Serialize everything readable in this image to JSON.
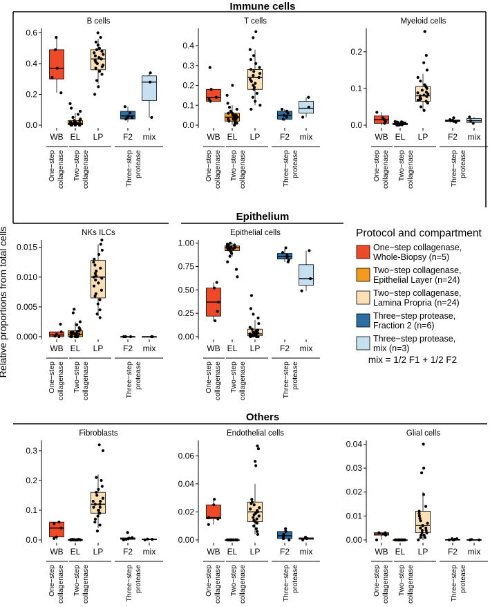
{
  "figure": {
    "y_axis_label": "Relative proportions from total cells",
    "legend_title": "Protocol and compartment",
    "legend_note": "mix = 1/2 F1 + 1/2 F2"
  },
  "sections": {
    "immune": "Immune cells",
    "epithelium": "Epithelium",
    "others": "Others"
  },
  "protocols": [
    {
      "key": "WB",
      "name": "One−step collagenase, Whole-Biopsy (n=5)",
      "line1": "One−step collagenase,",
      "line2": "Whole-Biopsy (n=5)",
      "color": "#ef4a28"
    },
    {
      "key": "EL",
      "name": "Two−step collagenase, Epithelial Layer (n=24)",
      "line1": "Two−step collagenase,",
      "line2": "Epithelial Layer (n=24)",
      "color": "#f39a1f"
    },
    {
      "key": "LP",
      "name": "Two−step collagenase, Lamina Propria (n=24)",
      "line1": "Two−step collagenase,",
      "line2": "Lamina Propria (n=24)",
      "color": "#fce0b5"
    },
    {
      "key": "F2",
      "name": "Three−step protease, Fraction 2 (n=6)",
      "line1": "Three−step protease,",
      "line2": "Fraction 2 (n=6)",
      "color": "#2b6ea3"
    },
    {
      "key": "mix",
      "name": "Three−step protease, mix (n=3)",
      "line1": "Three−step protease,",
      "line2": "mix (n=3)",
      "color": "#c4e0f1"
    }
  ],
  "x_groups": [
    {
      "line1": "One−step",
      "line2": "collagenase"
    },
    {
      "line1": "Two−step",
      "line2": "collagenase"
    },
    {
      "line1": "Three−step",
      "line2": "protease"
    }
  ],
  "chart_data": [
    {
      "type": "box",
      "title": "B cells",
      "categories": [
        "WB",
        "EL",
        "LP",
        "F2",
        "mix"
      ],
      "ylim": [
        0,
        0.62
      ],
      "yticks": [
        0.0,
        0.2,
        0.4,
        0.6
      ],
      "ytick_labels": [
        "0.0",
        "0.2",
        "0.4",
        "0.6"
      ],
      "boxes": [
        {
          "q1": 0.3,
          "median": 0.37,
          "q3": 0.49,
          "min": 0.21,
          "max": 0.57
        },
        {
          "q1": 0.002,
          "median": 0.01,
          "q3": 0.03,
          "min": 0.0,
          "max": 0.08
        },
        {
          "q1": 0.36,
          "median": 0.43,
          "q3": 0.49,
          "min": 0.27,
          "max": 0.56
        },
        {
          "q1": 0.04,
          "median": 0.06,
          "q3": 0.09,
          "min": 0.02,
          "max": 0.12
        },
        {
          "q1": 0.16,
          "median": 0.28,
          "q3": 0.32,
          "min": 0.05,
          "max": 0.34
        }
      ],
      "points": [
        [
          0.21,
          0.31,
          0.37,
          0.49,
          0.57
        ],
        [
          0.0,
          0.0,
          0.0,
          0.0,
          0.0,
          0.01,
          0.01,
          0.01,
          0.01,
          0.01,
          0.01,
          0.01,
          0.02,
          0.02,
          0.02,
          0.02,
          0.03,
          0.03,
          0.04,
          0.05,
          0.07,
          0.09,
          0.11,
          0.14
        ],
        [
          0.2,
          0.25,
          0.29,
          0.33,
          0.35,
          0.37,
          0.38,
          0.39,
          0.4,
          0.41,
          0.42,
          0.43,
          0.43,
          0.44,
          0.45,
          0.46,
          0.47,
          0.48,
          0.49,
          0.5,
          0.52,
          0.54,
          0.57,
          0.6
        ],
        [
          0.04,
          0.05,
          0.05,
          0.06,
          0.08,
          0.12
        ],
        [
          0.05,
          0.28,
          0.34
        ]
      ]
    },
    {
      "type": "box",
      "title": "T cells",
      "categories": [
        "WB",
        "EL",
        "LP",
        "F2",
        "mix"
      ],
      "ylim": [
        0,
        0.48
      ],
      "yticks": [
        0.0,
        0.1,
        0.2,
        0.3,
        0.4
      ],
      "ytick_labels": [
        "0.0",
        "0.1",
        "0.2",
        "0.3",
        "0.4"
      ],
      "boxes": [
        {
          "q1": 0.12,
          "median": 0.14,
          "q3": 0.18,
          "min": 0.12,
          "max": 0.18
        },
        {
          "q1": 0.02,
          "median": 0.04,
          "q3": 0.06,
          "min": 0.0,
          "max": 0.1
        },
        {
          "q1": 0.18,
          "median": 0.24,
          "q3": 0.28,
          "min": 0.1,
          "max": 0.38
        },
        {
          "q1": 0.03,
          "median": 0.05,
          "q3": 0.07,
          "min": 0.02,
          "max": 0.08
        },
        {
          "q1": 0.06,
          "median": 0.085,
          "q3": 0.12,
          "min": 0.04,
          "max": 0.14
        }
      ],
      "points": [
        [
          0.12,
          0.13,
          0.14,
          0.18,
          0.29
        ],
        [
          0.0,
          0.01,
          0.01,
          0.02,
          0.02,
          0.02,
          0.03,
          0.03,
          0.03,
          0.04,
          0.04,
          0.04,
          0.04,
          0.05,
          0.05,
          0.05,
          0.06,
          0.06,
          0.07,
          0.08,
          0.09,
          0.11,
          0.15,
          0.2
        ],
        [
          0.08,
          0.1,
          0.12,
          0.14,
          0.16,
          0.18,
          0.19,
          0.2,
          0.21,
          0.22,
          0.23,
          0.24,
          0.24,
          0.25,
          0.26,
          0.27,
          0.28,
          0.29,
          0.31,
          0.33,
          0.35,
          0.38,
          0.44,
          0.47
        ],
        [
          0.03,
          0.04,
          0.05,
          0.06,
          0.07,
          0.08
        ],
        [
          0.04,
          0.09,
          0.14
        ]
      ]
    },
    {
      "type": "box",
      "title": "Myeloid cells",
      "categories": [
        "WB",
        "EL",
        "LP",
        "F2",
        "mix"
      ],
      "ylim": [
        0,
        0.26
      ],
      "yticks": [
        0.0,
        0.1,
        0.2
      ],
      "ytick_labels": [
        "0.0",
        "0.1",
        "0.2"
      ],
      "boxes": [
        {
          "q1": 0.005,
          "median": 0.015,
          "q3": 0.025,
          "min": 0.0,
          "max": 0.035
        },
        {
          "q1": 0.001,
          "median": 0.003,
          "q3": 0.005,
          "min": 0.0,
          "max": 0.01
        },
        {
          "q1": 0.065,
          "median": 0.08,
          "q3": 0.105,
          "min": 0.04,
          "max": 0.14
        },
        {
          "q1": 0.01,
          "median": 0.012,
          "q3": 0.014,
          "min": 0.008,
          "max": 0.02
        },
        {
          "q1": 0.007,
          "median": 0.012,
          "q3": 0.018,
          "min": 0.005,
          "max": 0.022
        }
      ],
      "points": [
        [
          0.005,
          0.01,
          0.015,
          0.02,
          0.035
        ],
        [
          0.0,
          0.0,
          0.001,
          0.001,
          0.002,
          0.002,
          0.003,
          0.003,
          0.003,
          0.004,
          0.004,
          0.004,
          0.005,
          0.005,
          0.005,
          0.006,
          0.006,
          0.006,
          0.007,
          0.007,
          0.008,
          0.008,
          0.009,
          0.01
        ],
        [
          0.04,
          0.05,
          0.06,
          0.065,
          0.068,
          0.07,
          0.072,
          0.075,
          0.078,
          0.08,
          0.082,
          0.085,
          0.088,
          0.09,
          0.095,
          0.1,
          0.105,
          0.11,
          0.12,
          0.13,
          0.15,
          0.17,
          0.19,
          0.255
        ],
        [
          0.008,
          0.01,
          0.012,
          0.013,
          0.015,
          0.02
        ],
        [
          0.005,
          0.012,
          0.022
        ]
      ]
    },
    {
      "type": "box",
      "title": "NKs ILCs",
      "categories": [
        "WB",
        "EL",
        "LP",
        "F2",
        "mix"
      ],
      "ylim": [
        0,
        0.016
      ],
      "yticks": [
        0.0,
        0.005,
        0.01,
        0.015
      ],
      "ytick_labels": [
        "0.000",
        "0.005",
        "0.010",
        "0.015"
      ],
      "boxes": [
        {
          "q1": 0.0,
          "median": 0.0003,
          "q3": 0.0008,
          "min": 0.0,
          "max": 0.0008
        },
        {
          "q1": 0.0,
          "median": 0.0004,
          "q3": 0.001,
          "min": 0.0,
          "max": 0.0025
        },
        {
          "q1": 0.0065,
          "median": 0.01,
          "q3": 0.0128,
          "min": 0.0035,
          "max": 0.0155
        },
        {
          "q1": 0.0,
          "median": 0.0,
          "q3": 0.0,
          "min": 0.0,
          "max": 0.0
        },
        {
          "q1": 0.0,
          "median": 0.0,
          "q3": 0.0,
          "min": 0.0,
          "max": 0.0
        }
      ],
      "points": [
        [
          0.0,
          0.0001,
          0.0004,
          0.0008,
          0.0021
        ],
        [
          0.0,
          0.0,
          0.0,
          0.0,
          0.0,
          0.0,
          0.0,
          0.0001,
          0.0002,
          0.0003,
          0.0004,
          0.0004,
          0.0005,
          0.0006,
          0.0007,
          0.0008,
          0.0009,
          0.001,
          0.0012,
          0.0015,
          0.002,
          0.0025,
          0.004,
          0.0046
        ],
        [
          0.0032,
          0.0038,
          0.0045,
          0.0055,
          0.0062,
          0.0068,
          0.0072,
          0.0078,
          0.0085,
          0.009,
          0.0095,
          0.0098,
          0.01,
          0.0102,
          0.0106,
          0.011,
          0.0115,
          0.012,
          0.0125,
          0.013,
          0.0138,
          0.0145,
          0.0155,
          0.0162
        ],
        [
          0.0,
          0.0,
          0.0,
          0.0,
          0.0,
          0.0
        ],
        [
          0.0,
          0.0,
          0.0
        ]
      ]
    },
    {
      "type": "box",
      "title": "Epithelial cells",
      "categories": [
        "WB",
        "EL",
        "LP",
        "F2",
        "mix"
      ],
      "ylim": [
        0,
        1.02
      ],
      "yticks": [
        0.0,
        0.25,
        0.5,
        0.75,
        1.0
      ],
      "ytick_labels": [
        "0.00",
        "0.25",
        "0.50",
        "0.75",
        "1.00"
      ],
      "boxes": [
        {
          "q1": 0.22,
          "median": 0.37,
          "q3": 0.52,
          "min": 0.17,
          "max": 0.58
        },
        {
          "q1": 0.92,
          "median": 0.95,
          "q3": 0.97,
          "min": 0.86,
          "max": 1.0
        },
        {
          "q1": 0.01,
          "median": 0.03,
          "q3": 0.08,
          "min": 0.0,
          "max": 0.18
        },
        {
          "q1": 0.83,
          "median": 0.86,
          "q3": 0.89,
          "min": 0.8,
          "max": 0.94
        },
        {
          "q1": 0.55,
          "median": 0.62,
          "q3": 0.77,
          "min": 0.49,
          "max": 0.92
        }
      ],
      "points": [
        [
          0.17,
          0.27,
          0.37,
          0.52,
          0.58
        ],
        [
          0.64,
          0.72,
          0.8,
          0.86,
          0.89,
          0.91,
          0.92,
          0.93,
          0.93,
          0.94,
          0.94,
          0.95,
          0.95,
          0.95,
          0.96,
          0.96,
          0.96,
          0.97,
          0.97,
          0.97,
          0.98,
          0.98,
          0.99,
          1.0
        ],
        [
          0.0,
          0.0,
          0.0,
          0.01,
          0.01,
          0.01,
          0.02,
          0.02,
          0.02,
          0.03,
          0.03,
          0.03,
          0.04,
          0.04,
          0.05,
          0.06,
          0.07,
          0.08,
          0.1,
          0.14,
          0.2,
          0.24,
          0.3,
          0.44
        ],
        [
          0.8,
          0.82,
          0.85,
          0.87,
          0.9,
          0.95
        ],
        [
          0.49,
          0.62,
          0.92
        ]
      ]
    },
    {
      "type": "box",
      "title": "Fibroblasts",
      "categories": [
        "WB",
        "EL",
        "LP",
        "F2",
        "mix"
      ],
      "ylim": [
        0,
        0.33
      ],
      "yticks": [
        0.0,
        0.1,
        0.2,
        0.3
      ],
      "ytick_labels": [
        "0.0",
        "0.1",
        "0.2",
        "0.3"
      ],
      "boxes": [
        {
          "q1": 0.01,
          "median": 0.04,
          "q3": 0.06,
          "min": 0.0,
          "max": 0.06
        },
        {
          "q1": 0.0,
          "median": 0.0,
          "q3": 0.001,
          "min": 0.0,
          "max": 0.002
        },
        {
          "q1": 0.09,
          "median": 0.12,
          "q3": 0.16,
          "min": 0.04,
          "max": 0.22
        },
        {
          "q1": 0.002,
          "median": 0.004,
          "q3": 0.007,
          "min": 0.0,
          "max": 0.01
        },
        {
          "q1": 0.001,
          "median": 0.002,
          "q3": 0.003,
          "min": 0.0,
          "max": 0.004
        }
      ],
      "points": [
        [
          0.005,
          0.01,
          0.04,
          0.055,
          0.06
        ],
        [
          0.0,
          0.0,
          0.0,
          0.0,
          0.0,
          0.0,
          0.0,
          0.0,
          0.0,
          0.0,
          0.0,
          0.0,
          0.0,
          0.0,
          0.0,
          0.0,
          0.001,
          0.001,
          0.001,
          0.001,
          0.001,
          0.002,
          0.002,
          0.002
        ],
        [
          0.03,
          0.05,
          0.06,
          0.07,
          0.08,
          0.09,
          0.09,
          0.1,
          0.1,
          0.11,
          0.11,
          0.12,
          0.12,
          0.13,
          0.13,
          0.14,
          0.15,
          0.16,
          0.17,
          0.18,
          0.2,
          0.21,
          0.3,
          0.32
        ],
        [
          0.0,
          0.002,
          0.004,
          0.006,
          0.008,
          0.025
        ],
        [
          0.0,
          0.002,
          0.003
        ]
      ]
    },
    {
      "type": "box",
      "title": "Endothelial cells",
      "categories": [
        "WB",
        "EL",
        "LP",
        "F2",
        "mix"
      ],
      "ylim": [
        0,
        0.07
      ],
      "yticks": [
        0.0,
        0.02,
        0.04,
        0.06
      ],
      "ytick_labels": [
        "0.00",
        "0.02",
        "0.04",
        "0.06"
      ],
      "boxes": [
        {
          "q1": 0.015,
          "median": 0.016,
          "q3": 0.025,
          "min": 0.011,
          "max": 0.029
        },
        {
          "q1": 0.0,
          "median": 0.0,
          "q3": 0.0,
          "min": 0.0,
          "max": 0.0
        },
        {
          "q1": 0.013,
          "median": 0.02,
          "q3": 0.027,
          "min": 0.004,
          "max": 0.04
        },
        {
          "q1": 0.001,
          "median": 0.003,
          "q3": 0.006,
          "min": 0.0,
          "max": 0.008
        },
        {
          "q1": 0.0005,
          "median": 0.001,
          "q3": 0.0015,
          "min": 0.0,
          "max": 0.002
        }
      ],
      "points": [
        [
          0.011,
          0.015,
          0.016,
          0.025,
          0.029
        ],
        [
          0.0,
          0.0,
          0.0,
          0.0,
          0.0,
          0.0,
          0.0,
          0.0,
          0.0,
          0.0,
          0.0,
          0.0,
          0.0,
          0.0,
          0.0,
          0.0,
          0.0,
          0.0,
          0.0,
          0.0,
          0.0,
          0.0,
          0.0,
          0.0
        ],
        [
          0.004,
          0.006,
          0.008,
          0.01,
          0.012,
          0.013,
          0.014,
          0.015,
          0.016,
          0.017,
          0.018,
          0.019,
          0.02,
          0.021,
          0.022,
          0.023,
          0.025,
          0.026,
          0.027,
          0.029,
          0.053,
          0.056,
          0.065,
          0.067
        ],
        [
          0.0,
          0.001,
          0.002,
          0.004,
          0.006,
          0.008
        ],
        [
          0.0,
          0.001,
          0.002
        ]
      ]
    },
    {
      "type": "box",
      "title": "Glial cells",
      "categories": [
        "WB",
        "EL",
        "LP",
        "F2",
        "mix"
      ],
      "ylim": [
        0,
        0.041
      ],
      "yticks": [
        0.0,
        0.01,
        0.02,
        0.03,
        0.04
      ],
      "ytick_labels": [
        "0.00",
        "0.01",
        "0.02",
        "0.03",
        "0.04"
      ],
      "boxes": [
        {
          "q1": 0.002,
          "median": 0.0025,
          "q3": 0.003,
          "min": 0.0,
          "max": 0.003
        },
        {
          "q1": 0.0,
          "median": 0.0,
          "q3": 0.0,
          "min": 0.0,
          "max": 0.0
        },
        {
          "q1": 0.003,
          "median": 0.006,
          "q3": 0.012,
          "min": 0.0,
          "max": 0.02
        },
        {
          "q1": 0.0,
          "median": 0.0,
          "q3": 0.0002,
          "min": 0.0,
          "max": 0.0005
        },
        {
          "q1": 0.0,
          "median": 0.0,
          "q3": 0.0001,
          "min": 0.0,
          "max": 0.0002
        }
      ],
      "points": [
        [
          0.0,
          0.002,
          0.0025,
          0.003,
          0.003
        ],
        [
          0.0,
          0.0,
          0.0,
          0.0,
          0.0,
          0.0,
          0.0,
          0.0,
          0.0,
          0.0,
          0.0,
          0.0,
          0.0,
          0.0,
          0.0,
          0.0,
          0.0,
          0.0,
          0.0,
          0.0,
          0.0,
          0.0,
          0.0,
          0.0
        ],
        [
          0.0,
          0.001,
          0.001,
          0.002,
          0.002,
          0.003,
          0.003,
          0.004,
          0.004,
          0.005,
          0.005,
          0.006,
          0.006,
          0.007,
          0.008,
          0.009,
          0.01,
          0.011,
          0.012,
          0.014,
          0.019,
          0.028,
          0.03,
          0.04
        ],
        [
          0.0,
          0.0,
          0.0,
          0.0003,
          0.0005,
          0.0005
        ],
        [
          0.0,
          0.0,
          0.0002
        ]
      ]
    }
  ]
}
